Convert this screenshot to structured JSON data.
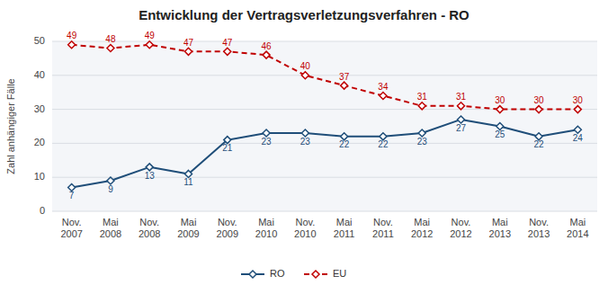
{
  "chart_data": {
    "type": "line",
    "title": "Entwicklung der Vertragsverletzungsverfahren - RO",
    "ylabel": "Zahl anhängiger Fälle",
    "categories": [
      "Nov.\n2007",
      "Mai\n2008",
      "Nov.\n2008",
      "Mai\n2009",
      "Nov.\n2009",
      "Mai\n2010",
      "Nov.\n2010",
      "Mai\n2011",
      "Nov.\n2011",
      "Mai\n2012",
      "Nov.\n2012",
      "Mai\n2013",
      "Nov.\n2013",
      "Mai\n2014"
    ],
    "series": [
      {
        "name": "RO",
        "color": "#1F4E79",
        "line_style": "solid",
        "marker": "diamond",
        "values": [
          7,
          9,
          13,
          11,
          21,
          23,
          23,
          22,
          22,
          23,
          27,
          25,
          22,
          24
        ]
      },
      {
        "name": "EU",
        "color": "#C00000",
        "line_style": "dashed",
        "marker": "diamond",
        "values": [
          49,
          48,
          49,
          47,
          47,
          46,
          40,
          37,
          34,
          31,
          31,
          30,
          30,
          30
        ]
      }
    ],
    "ylim": [
      0,
      50
    ],
    "yticks": [
      0,
      10,
      20,
      30,
      40,
      50
    ],
    "grid": true,
    "legend": "bottom",
    "data_labels": true
  }
}
